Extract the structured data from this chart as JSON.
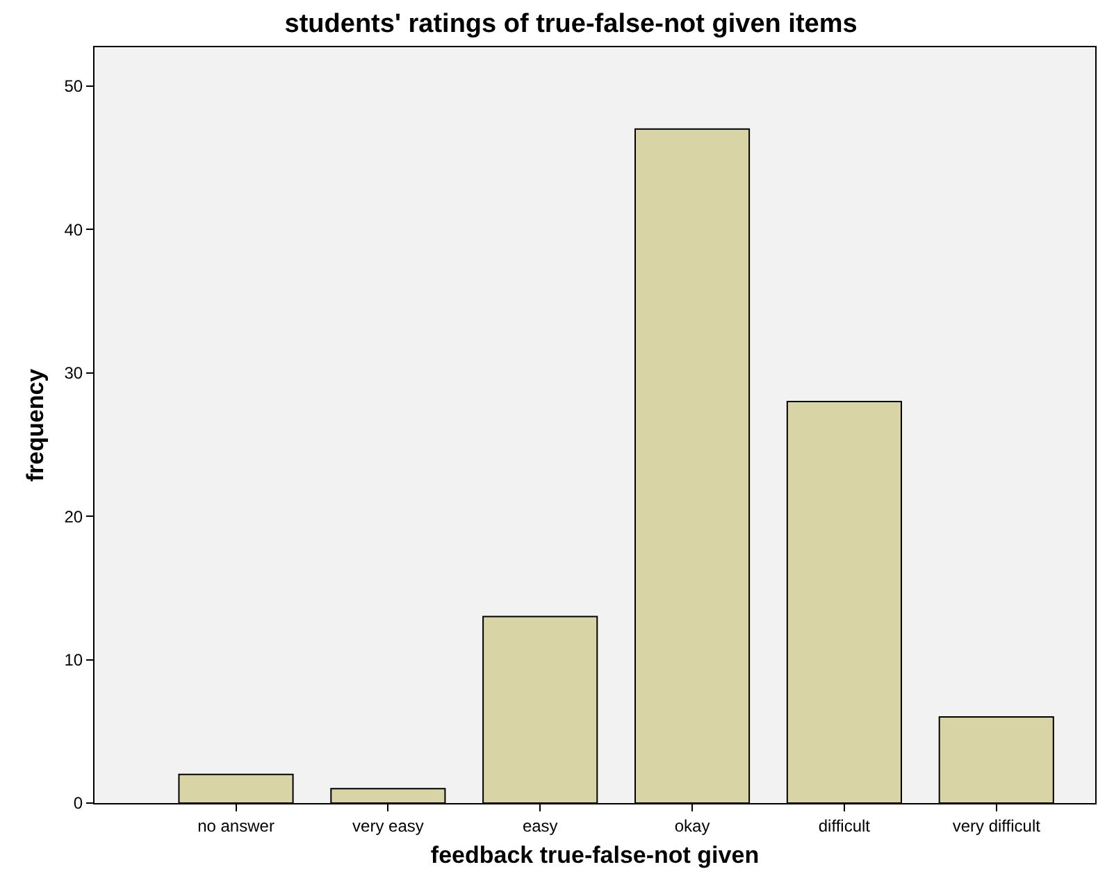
{
  "chart_data": {
    "type": "bar",
    "title": "students' ratings of true-false-not given items",
    "xlabel": "feedback true-false-not given",
    "ylabel": "frequency",
    "categories": [
      "no answer",
      "very easy",
      "easy",
      "okay",
      "difficult",
      "very difficult"
    ],
    "values": [
      2,
      1,
      13,
      47,
      28,
      6
    ],
    "color": "#d8d4a6",
    "ylim": [
      0,
      52.7
    ],
    "yticks": [
      0,
      10,
      20,
      30,
      40,
      50
    ],
    "grid": false
  }
}
